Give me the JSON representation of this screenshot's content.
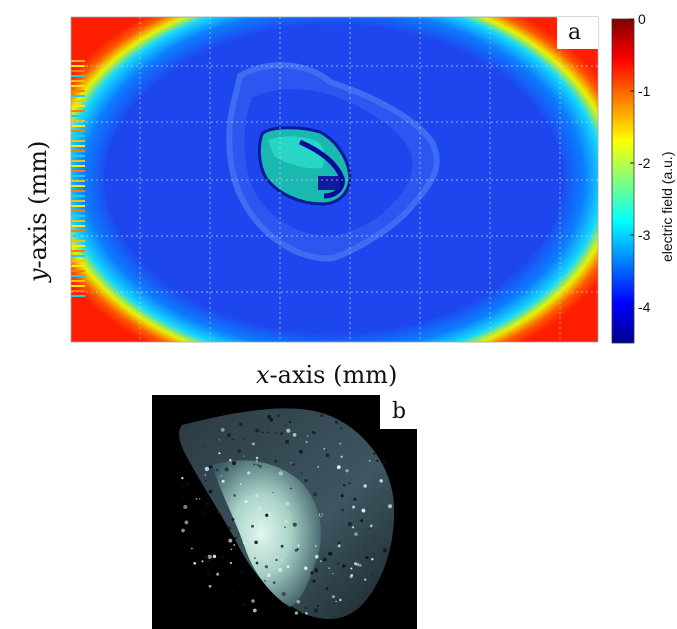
{
  "chart_data": [
    {
      "type": "heatmap",
      "panel_label": "a",
      "xlabel_italic": "x",
      "xlabel_rest": "-axis (mm)",
      "ylabel_italic": "y",
      "ylabel_rest": "-axis (mm)",
      "colorbar": {
        "label": "electric field (a.u.)",
        "range": [
          -4.5,
          0
        ],
        "ticks": [
          0,
          -1,
          -2,
          -3,
          -4
        ],
        "tick_labels": [
          "0",
          "-1",
          "-2",
          "-3",
          "-4"
        ],
        "colormap": "jet"
      },
      "grid": true,
      "description_values": {
        "background": -4.0,
        "corners": -0.3,
        "object_shell": -3.7,
        "inner_region": -2.7,
        "inner_edge": -4.4
      }
    },
    {
      "type": "image",
      "panel_label": "b"
    }
  ],
  "colors": {
    "jet_dark_blue": "#00008f",
    "jet_blue": "#0000ff",
    "jet_cyan": "#00ffff",
    "jet_yellow": "#ffff00",
    "jet_red": "#ff0000",
    "jet_dark_red": "#800000",
    "photo_background": "#000000",
    "photo_highlight": "#cdeee6"
  }
}
